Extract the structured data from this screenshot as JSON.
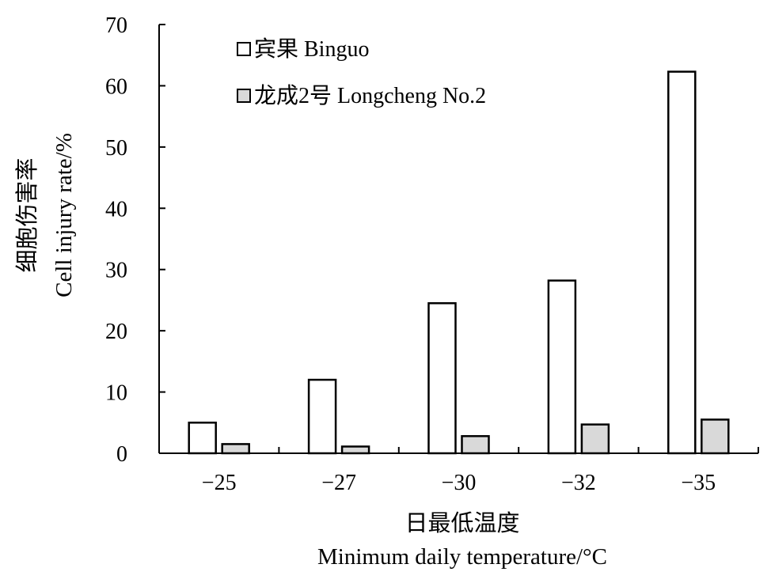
{
  "chart_data": {
    "type": "bar",
    "categories": [
      "−25",
      "−27",
      "−30",
      "−32",
      "−35"
    ],
    "series": [
      {
        "name": "宾果 Binguo",
        "color": "#ffffff",
        "values": [
          5.0,
          12.0,
          24.5,
          28.2,
          62.3
        ]
      },
      {
        "name": "龙成2号 Longcheng No.2",
        "color": "#d9d9d9",
        "values": [
          1.5,
          1.1,
          2.8,
          4.7,
          5.5
        ]
      }
    ],
    "ylim": [
      0,
      70
    ],
    "yticks": [
      0,
      10,
      20,
      30,
      40,
      50,
      60,
      70
    ],
    "ylabel_lines": [
      "细胞伤害率",
      "Cell injury rate/%"
    ],
    "xlabel_lines": [
      "日最低温度",
      "Minimum daily temperature/°C"
    ],
    "legend_position": "top-left",
    "grid": false,
    "bar_edge_color": "#000000"
  }
}
